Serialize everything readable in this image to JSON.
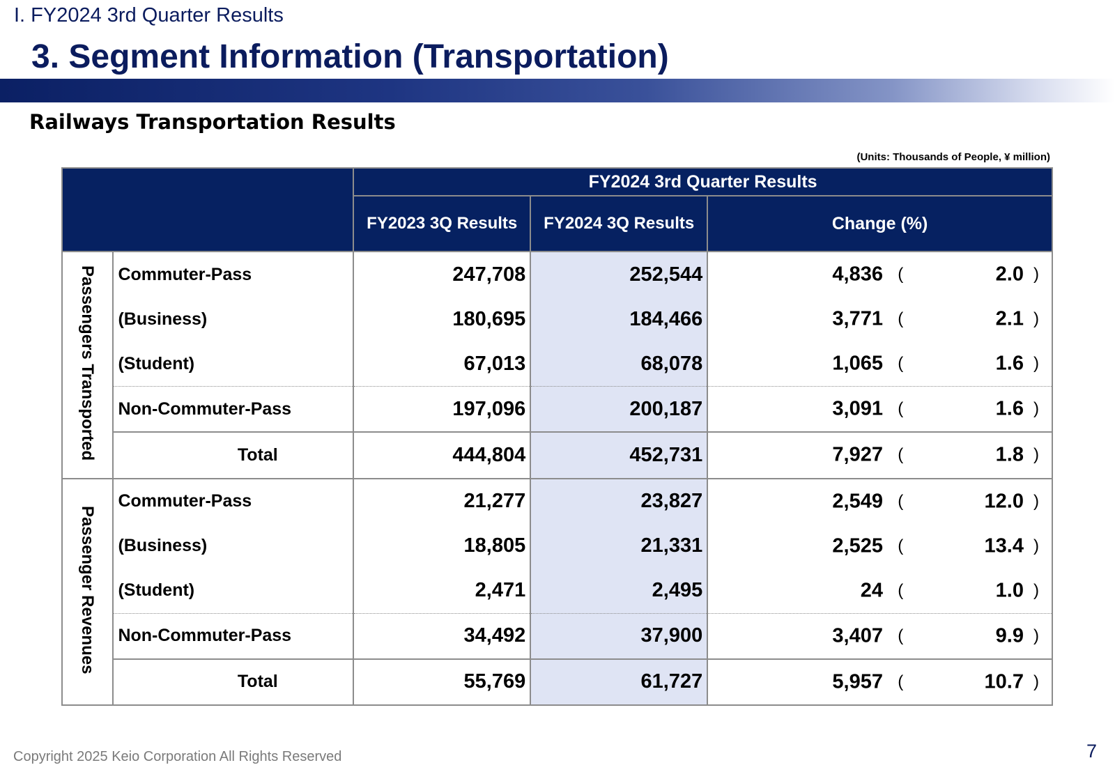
{
  "header": {
    "section": "I. FY2024 3rd Quarter Results",
    "title": "3. Segment Information (Transportation)"
  },
  "subtitle": "Railways Transportation Results",
  "units_note": "(Units: Thousands of People, ¥ million)",
  "table": {
    "group_header": "FY2024 3rd Quarter Results",
    "col_fy2023": "FY2023 3Q Results",
    "col_fy2024": "FY2024 3Q Results",
    "col_change": "Change (%)",
    "paren_open": "(",
    "paren_close": ")",
    "groups": [
      {
        "label": "Passengers Transported",
        "rows": [
          {
            "label": "Commuter-Pass",
            "fy2023": "247,708",
            "fy2024": "252,544",
            "change": "4,836",
            "pct": "2.0"
          },
          {
            "label": "(Business)",
            "fy2023": "180,695",
            "fy2024": "184,466",
            "change": "3,771",
            "pct": "2.1"
          },
          {
            "label": "(Student)",
            "fy2023": "67,013",
            "fy2024": "68,078",
            "change": "1,065",
            "pct": "1.6"
          },
          {
            "label": "Non-Commuter-Pass",
            "fy2023": "197,096",
            "fy2024": "200,187",
            "change": "3,091",
            "pct": "1.6"
          },
          {
            "label": "Total",
            "fy2023": "444,804",
            "fy2024": "452,731",
            "change": "7,927",
            "pct": "1.8"
          }
        ]
      },
      {
        "label": "Passenger Revenues",
        "rows": [
          {
            "label": "Commuter-Pass",
            "fy2023": "21,277",
            "fy2024": "23,827",
            "change": "2,549",
            "pct": "12.0"
          },
          {
            "label": "(Business)",
            "fy2023": "18,805",
            "fy2024": "21,331",
            "change": "2,525",
            "pct": "13.4"
          },
          {
            "label": "(Student)",
            "fy2023": "2,471",
            "fy2024": "2,495",
            "change": "24",
            "pct": "1.0"
          },
          {
            "label": "Non-Commuter-Pass",
            "fy2023": "34,492",
            "fy2024": "37,900",
            "change": "3,407",
            "pct": "9.9"
          },
          {
            "label": "Total",
            "fy2023": "55,769",
            "fy2024": "61,727",
            "change": "5,957",
            "pct": "10.7"
          }
        ]
      }
    ]
  },
  "footer": {
    "copyright": "Copyright 2025 Keio Corporation All Rights Reserved",
    "page_number": "7"
  }
}
